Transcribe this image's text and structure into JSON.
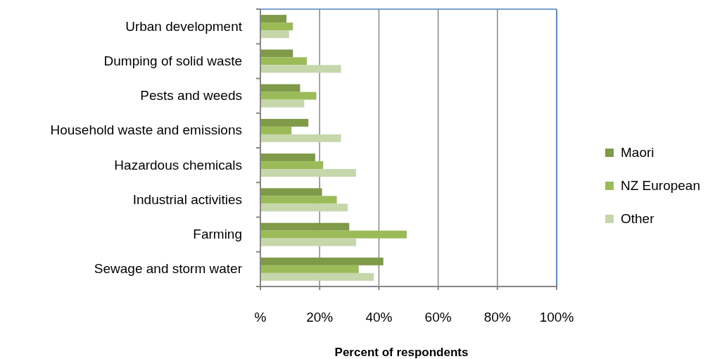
{
  "chart_data": {
    "type": "bar",
    "orientation": "horizontal",
    "xlabel": "Percent of respondents",
    "categories": [
      "Urban development",
      "Dumping of solid waste",
      "Pests and weeds",
      "Household waste and emissions",
      "Hazardous chemicals",
      "Industrial activities",
      "Farming",
      "Sewage and storm water"
    ],
    "series": [
      {
        "name": "Maori",
        "color": "#7f9a48",
        "values": [
          8.8,
          11,
          13.4,
          16.2,
          18.5,
          20.8,
          30,
          41.5
        ]
      },
      {
        "name": "NZ European",
        "color": "#9bbb59",
        "values": [
          11,
          15.7,
          18.9,
          10.5,
          21.2,
          25.8,
          49.4,
          33.2
        ]
      },
      {
        "name": "Other",
        "color": "#c6d7ac",
        "values": [
          9.7,
          27.2,
          14.8,
          27.2,
          32.3,
          29.5,
          32.3,
          38.3
        ]
      }
    ],
    "xlim": [
      0,
      100
    ],
    "xticks": [
      {
        "value": 0,
        "label": "%"
      },
      {
        "value": 20,
        "label": "20%"
      },
      {
        "value": 40,
        "label": "40%"
      },
      {
        "value": 60,
        "label": "60%"
      },
      {
        "value": 80,
        "label": "80%"
      },
      {
        "value": 100,
        "label": "100%"
      }
    ],
    "grid": "x",
    "legend": "right"
  }
}
